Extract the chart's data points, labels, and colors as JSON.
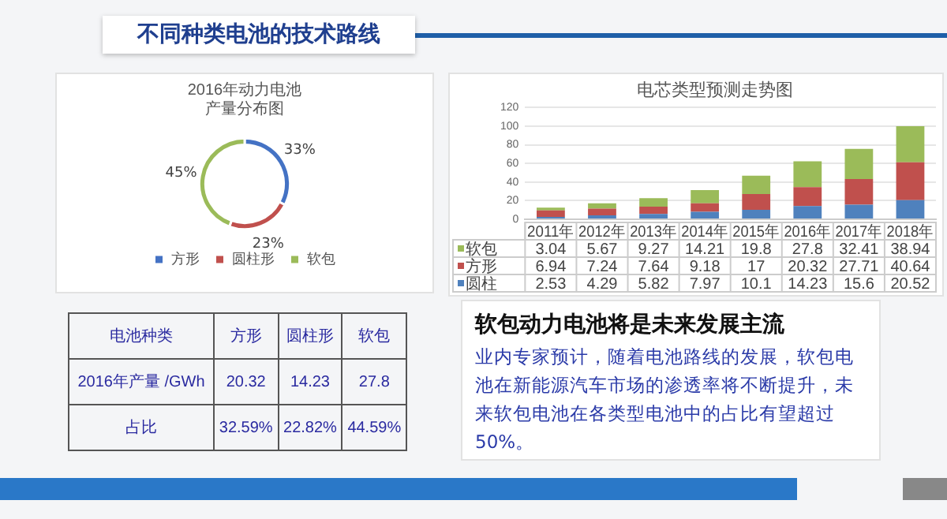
{
  "chart_data": [
    {
      "type": "other",
      "title": "不同种类电池的技术路线"
    },
    {
      "type": "donut",
      "title": "2016年动力电池产量分布图",
      "categories": [
        "方形",
        "圆柱形",
        "软包"
      ],
      "values": [
        33,
        23,
        45
      ],
      "colors": [
        "#4472c4",
        "#c0504d",
        "#9bbb59"
      ],
      "value_labels": [
        "33%",
        "23%",
        "45%"
      ],
      "legend": "bottom"
    },
    {
      "type": "bar",
      "title": "电芯类型预测走势图",
      "categories": [
        "2011年",
        "2012年",
        "2013年",
        "2014年",
        "2015年",
        "2016年",
        "2017年",
        "2018年"
      ],
      "stacked": true,
      "series": [
        {
          "name": "圆柱",
          "color": "#4f81bd",
          "values": [
            2.53,
            4.29,
            5.82,
            7.97,
            10.1,
            14.23,
            15.6,
            20.52
          ]
        },
        {
          "name": "方形",
          "color": "#c0504d",
          "values": [
            6.94,
            7.24,
            7.64,
            9.18,
            17,
            20.32,
            27.71,
            40.64
          ]
        },
        {
          "name": "软包",
          "color": "#9bbb59",
          "values": [
            3.04,
            5.67,
            9.27,
            14.21,
            19.8,
            27.8,
            32.41,
            38.94
          ]
        }
      ],
      "ylim": [
        0,
        120
      ],
      "yticks": [
        0,
        20,
        40,
        60,
        80,
        100,
        120
      ],
      "grid": "y",
      "legend": "bottom",
      "data_labels": true
    },
    {
      "type": "other",
      "ylabel": "电池种类",
      "categories": [
        "方形",
        "圆柱形",
        "软包"
      ],
      "y_categories": [
        "2016年产量\n/GWh",
        "占比"
      ],
      "cells": [
        [
          "20.32",
          "14.23",
          "27.8"
        ],
        [
          "32.59%",
          "22.82%",
          "44.59%"
        ]
      ]
    },
    {
      "type": "other",
      "title": "软包动力电池将是未来发展主流",
      "annotations": [
        "业内专家预计，随着电池路线的发展，软包电池在新能源汽车市场的渗透率将不断提升，未来软包电池在各类型电池中的占比有望超过50%。"
      ]
    }
  ]
}
